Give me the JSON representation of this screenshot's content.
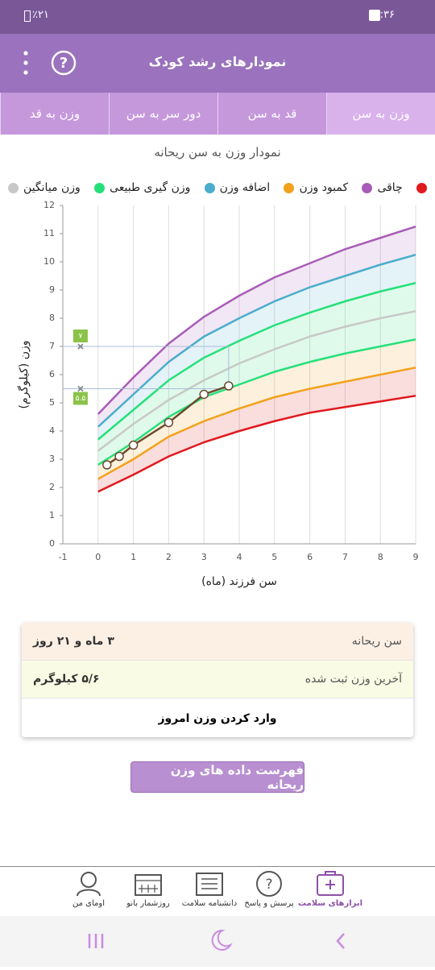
{
  "status_bar": {
    "time": "۱۱:۳۶",
    "battery": "٪۲۱"
  },
  "header": {
    "title": "نمودارهای رشد کودک"
  },
  "tabs": [
    "وزن به سن",
    "قد به سن",
    "دور سر به سن",
    "وزن به قد"
  ],
  "chart_data": {
    "type": "line",
    "title": "نمودار وزن به سن ریحانه",
    "x_label": "سن فرزند (ماه)",
    "y_label": "وزن (کیلوگرم)",
    "x": [
      0,
      1,
      2,
      3,
      4,
      5,
      6,
      7,
      8,
      9
    ],
    "xlim": [
      -1,
      9
    ],
    "xticks": [
      -1,
      0,
      1,
      2,
      3,
      4,
      5,
      6,
      7,
      8,
      9
    ],
    "ylim": [
      0,
      12
    ],
    "yticks": [
      0,
      1,
      2,
      3,
      4,
      5,
      6,
      7,
      8,
      9,
      10,
      11,
      12
    ],
    "grid": "x",
    "series": [
      {
        "color": "#e0191e",
        "values": [
          1.85,
          2.45,
          3.1,
          3.6,
          4.0,
          4.35,
          4.65,
          4.85,
          5.05,
          5.25
        ]
      },
      {
        "name": "چاقی",
        "color": "#a95cb7",
        "values": [
          4.6,
          5.9,
          7.1,
          8.05,
          8.8,
          9.45,
          9.95,
          10.45,
          10.85,
          11.25
        ]
      },
      {
        "name": "کمبود وزن",
        "color": "#f2a21b",
        "values": [
          2.3,
          3.0,
          3.8,
          4.35,
          4.8,
          5.2,
          5.5,
          5.75,
          6.0,
          6.25
        ]
      },
      {
        "name": "اضافه وزن",
        "color": "#4aadcc",
        "values": [
          4.15,
          5.3,
          6.45,
          7.35,
          8.0,
          8.6,
          9.1,
          9.5,
          9.9,
          10.25
        ]
      },
      {
        "name": "وزن گیری طبیعی",
        "color": "#25e07a",
        "values": [
          3.7,
          4.75,
          5.8,
          6.6,
          7.2,
          7.75,
          8.2,
          8.6,
          8.95,
          9.25
        ]
      },
      {
        "name": "وزن میانگین",
        "color": "#c8c8c8",
        "values": [
          3.3,
          4.25,
          5.1,
          5.8,
          6.4,
          6.9,
          7.35,
          7.7,
          8.0,
          8.25
        ]
      },
      {
        "color": "#25e07a",
        "legend": false,
        "values": [
          2.8,
          3.6,
          4.5,
          5.2,
          5.65,
          6.1,
          6.45,
          6.75,
          7.0,
          7.25
        ]
      }
    ],
    "child": {
      "color": "#6b4a2e",
      "x": [
        0.25,
        0.6,
        1.0,
        2.0,
        3.0,
        3.7
      ],
      "values": [
        2.8,
        3.1,
        3.5,
        4.3,
        5.3,
        5.6
      ]
    },
    "guides": [
      {
        "value": 7,
        "label": "۷"
      },
      {
        "value": 5.5,
        "label": "۵.۵"
      }
    ]
  },
  "info": {
    "rows": [
      {
        "label": "سن ریحانه",
        "value": "۳ ماه و ۲۱ روز"
      },
      {
        "label": "آخرین وزن ثبت شده",
        "value": "۵/۶ کیلوگرم"
      }
    ],
    "action": "وارد کردن وزن امروز"
  },
  "button": "فهرست داده های وزن ریحانه",
  "nav": [
    "ابزارهای سلامت",
    "پرسش و پاسخ",
    "دانشنامه سلامت",
    "روزشمار بانو",
    "اومای من"
  ]
}
